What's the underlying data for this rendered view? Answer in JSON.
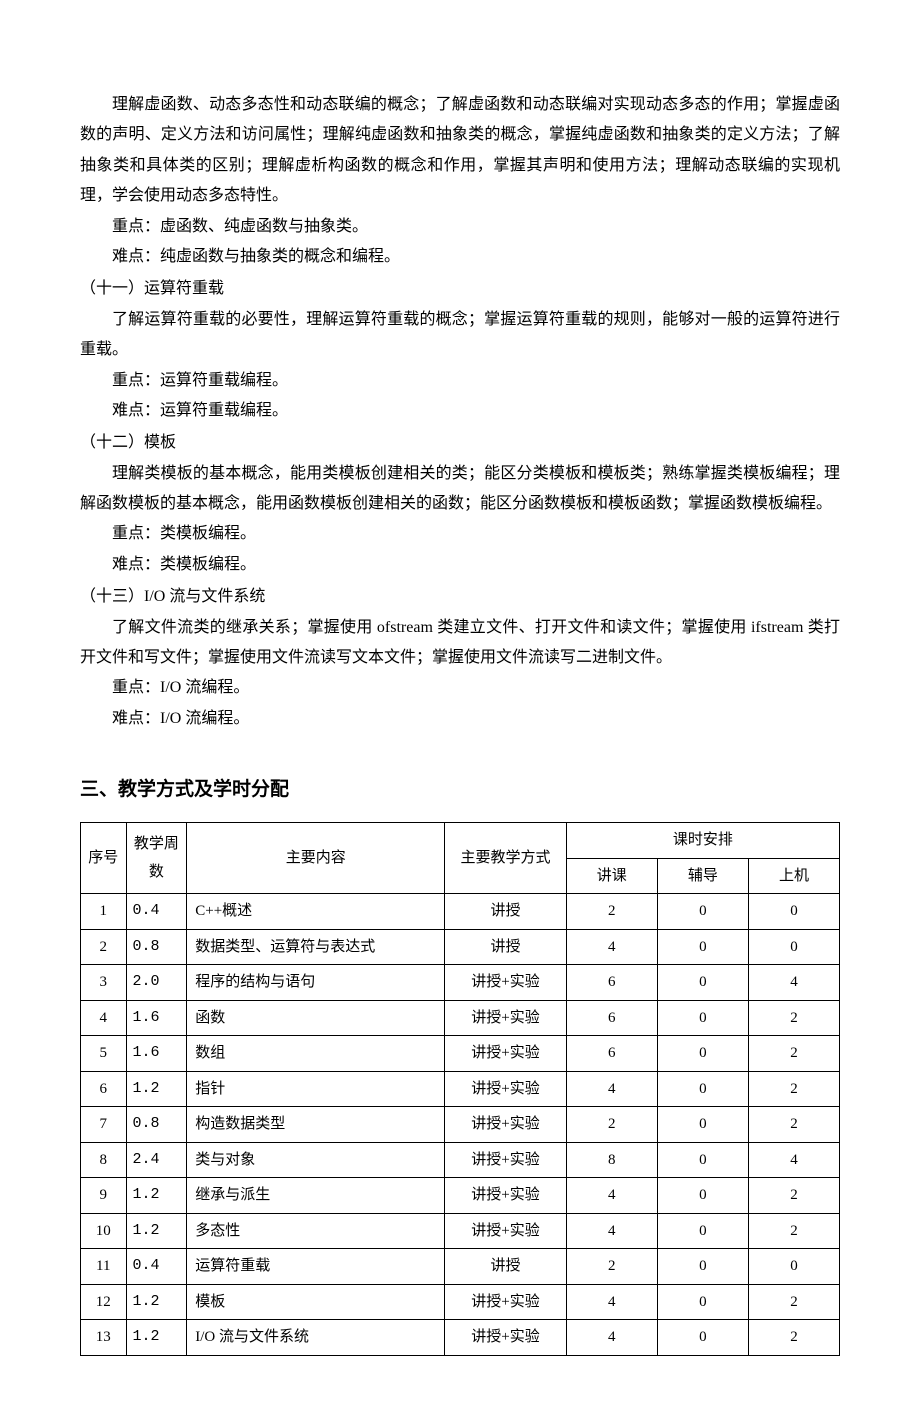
{
  "paragraphs": {
    "p1": "理解虚函数、动态多态性和动态联编的概念；了解虚函数和动态联编对实现动态多态的作用；掌握虚函数的声明、定义方法和访问属性；理解纯虚函数和抽象类的概念，掌握纯虚函数和抽象类的定义方法；了解抽象类和具体类的区别；理解虚析构函数的概念和作用，掌握其声明和使用方法；理解动态联编的实现机理，学会使用动态多态特性。",
    "p1_key": "重点：虚函数、纯虚函数与抽象类。",
    "p1_diff": "难点：纯虚函数与抽象类的概念和编程。",
    "s11": "（十一）运算符重载",
    "p2": "了解运算符重载的必要性，理解运算符重载的概念；掌握运算符重载的规则，能够对一般的运算符进行重载。",
    "p2_key": "重点：运算符重载编程。",
    "p2_diff": "难点：运算符重载编程。",
    "s12": "（十二）模板",
    "p3": "理解类模板的基本概念，能用类模板创建相关的类；能区分类模板和模板类；熟练掌握类模板编程；理解函数模板的基本概念，能用函数模板创建相关的函数；能区分函数模板和模板函数；掌握函数模板编程。",
    "p3_key": "重点：类模板编程。",
    "p3_diff": "难点：类模板编程。",
    "s13": "（十三）I/O 流与文件系统",
    "p4": "了解文件流类的继承关系；掌握使用 ofstream 类建立文件、打开文件和读文件；掌握使用 ifstream 类打开文件和写文件；掌握使用文件流读写文本文件；掌握使用文件流读写二进制文件。",
    "p4_key": "重点：I/O 流编程。",
    "p4_diff": "难点：I/O 流编程。"
  },
  "heading": "三、教学方式及学时分配",
  "table": {
    "headers": {
      "seq": "序号",
      "weeks": "教学周数",
      "content": "主要内容",
      "method": "主要教学方式",
      "schedule": "课时安排",
      "lecture": "讲课",
      "tutor": "辅导",
      "lab": "上机"
    },
    "rows": [
      {
        "seq": "1",
        "weeks": "0.4",
        "content": "C++概述",
        "method": "讲授",
        "lecture": "2",
        "tutor": "0",
        "lab": "0"
      },
      {
        "seq": "2",
        "weeks": "0.8",
        "content": "数据类型、运算符与表达式",
        "method": "讲授",
        "lecture": "4",
        "tutor": "0",
        "lab": "0"
      },
      {
        "seq": "3",
        "weeks": "2.0",
        "content": "程序的结构与语句",
        "method": "讲授+实验",
        "lecture": "6",
        "tutor": "0",
        "lab": "4"
      },
      {
        "seq": "4",
        "weeks": "1.6",
        "content": "函数",
        "method": "讲授+实验",
        "lecture": "6",
        "tutor": "0",
        "lab": "2"
      },
      {
        "seq": "5",
        "weeks": "1.6",
        "content": "数组",
        "method": "讲授+实验",
        "lecture": "6",
        "tutor": "0",
        "lab": "2"
      },
      {
        "seq": "6",
        "weeks": "1.2",
        "content": "指针",
        "method": "讲授+实验",
        "lecture": "4",
        "tutor": "0",
        "lab": "2"
      },
      {
        "seq": "7",
        "weeks": "0.8",
        "content": "构造数据类型",
        "method": "讲授+实验",
        "lecture": "2",
        "tutor": "0",
        "lab": "2"
      },
      {
        "seq": "8",
        "weeks": "2.4",
        "content": "类与对象",
        "method": "讲授+实验",
        "lecture": "8",
        "tutor": "0",
        "lab": "4"
      },
      {
        "seq": "9",
        "weeks": "1.2",
        "content": "继承与派生",
        "method": "讲授+实验",
        "lecture": "4",
        "tutor": "0",
        "lab": "2"
      },
      {
        "seq": "10",
        "weeks": "1.2",
        "content": "多态性",
        "method": "讲授+实验",
        "lecture": "4",
        "tutor": "0",
        "lab": "2"
      },
      {
        "seq": "11",
        "weeks": "0.4",
        "content": "运算符重载",
        "method": "讲授",
        "lecture": "2",
        "tutor": "0",
        "lab": "0"
      },
      {
        "seq": "12",
        "weeks": "1.2",
        "content": "模板",
        "method": "讲授+实验",
        "lecture": "4",
        "tutor": "0",
        "lab": "2"
      },
      {
        "seq": "13",
        "weeks": "1.2",
        "content": "I/O 流与文件系统",
        "method": "讲授+实验",
        "lecture": "4",
        "tutor": "0",
        "lab": "2"
      }
    ]
  }
}
